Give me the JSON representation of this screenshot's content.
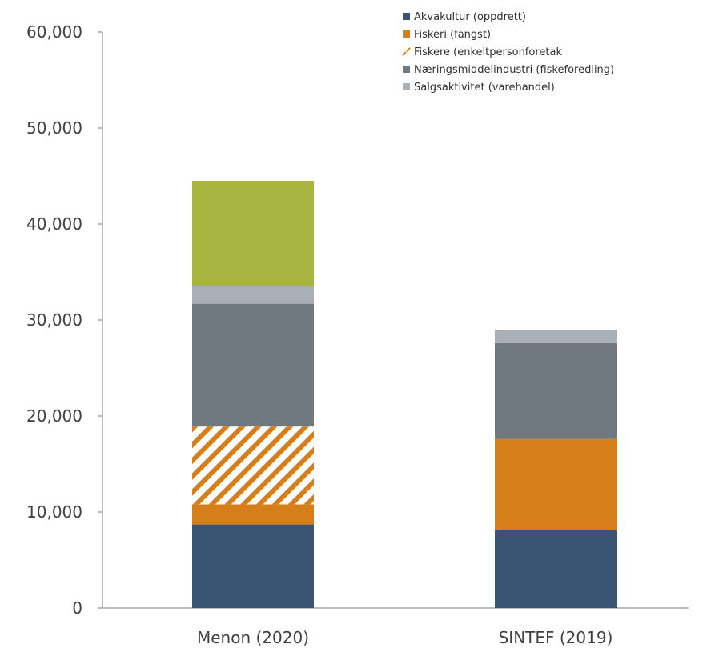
{
  "chart_data": {
    "type": "bar",
    "stacked": true,
    "categories": [
      "Menon (2020)",
      "SINTEF (2019)"
    ],
    "ylim": [
      0,
      60000
    ],
    "yticks": [
      0,
      10000,
      20000,
      30000,
      40000,
      50000,
      60000
    ],
    "ytick_labels": [
      "0",
      "10,000",
      "20,000",
      "30,000",
      "40,000",
      "50,000",
      "60,000"
    ],
    "grid": false,
    "legend": "top-right",
    "series": [
      {
        "key": "akva",
        "name": "Akvakultur (oppdrett)",
        "color": "#3a5573",
        "pattern": "solid",
        "in_legend": true,
        "values": [
          8700,
          8100
        ]
      },
      {
        "key": "fisk",
        "name": "Fiskeri (fangst)",
        "color": "#d67f1a",
        "pattern": "solid",
        "in_legend": true,
        "values": [
          2100,
          9500
        ]
      },
      {
        "key": "fiskere",
        "name": "Fiskere (enkeltpersonforetak",
        "color": "#d67f1a",
        "pattern": "hatch",
        "in_legend": true,
        "values": [
          8100,
          0
        ]
      },
      {
        "key": "naering",
        "name": "Næringsmiddelindustri (fiskeforedling)",
        "color": "#707880",
        "pattern": "solid",
        "in_legend": true,
        "values": [
          12800,
          10000
        ]
      },
      {
        "key": "salg",
        "name": "Salgsaktivitet (varehandel)",
        "color": "#aab0b8",
        "pattern": "solid",
        "in_legend": true,
        "values": [
          1800,
          1400
        ]
      },
      {
        "key": "other",
        "name": "",
        "color": "#a8b540",
        "pattern": "solid",
        "in_legend": false,
        "values": [
          11000,
          0
        ]
      }
    ]
  }
}
